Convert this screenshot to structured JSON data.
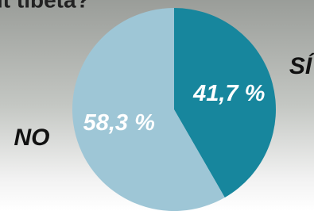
{
  "chart_data": {
    "type": "pie",
    "title": "it tibeta?",
    "categories": [
      "SÍ",
      "NO"
    ],
    "values": [
      41.7,
      58.3
    ],
    "value_labels": [
      "41,7 %",
      "58,3 %"
    ],
    "colors": [
      "#17869d",
      "#9ec6d6"
    ]
  }
}
